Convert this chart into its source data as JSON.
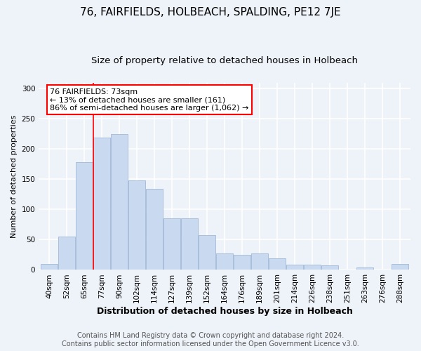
{
  "title": "76, FAIRFIELDS, HOLBEACH, SPALDING, PE12 7JE",
  "subtitle": "Size of property relative to detached houses in Holbeach",
  "xlabel": "Distribution of detached houses by size in Holbeach",
  "ylabel": "Number of detached properties",
  "bar_labels": [
    "40sqm",
    "52sqm",
    "65sqm",
    "77sqm",
    "90sqm",
    "102sqm",
    "114sqm",
    "127sqm",
    "139sqm",
    "152sqm",
    "164sqm",
    "176sqm",
    "189sqm",
    "201sqm",
    "214sqm",
    "226sqm",
    "238sqm",
    "251sqm",
    "263sqm",
    "276sqm",
    "288sqm"
  ],
  "bar_values": [
    10,
    55,
    178,
    219,
    225,
    148,
    134,
    85,
    85,
    57,
    27,
    25,
    27,
    19,
    9,
    9,
    8,
    0,
    4,
    0,
    10
  ],
  "bar_color": "#c9d9f0",
  "bar_edge_color": "#a0b8d8",
  "annotation_line1": "76 FAIRFIELDS: 73sqm",
  "annotation_line2": "← 13% of detached houses are smaller (161)",
  "annotation_line3": "86% of semi-detached houses are larger (1,062) →",
  "annotation_box_color": "white",
  "annotation_box_edge_color": "red",
  "red_line_bar_index": 2.5,
  "ylim": [
    0,
    310
  ],
  "yticks": [
    0,
    50,
    100,
    150,
    200,
    250,
    300
  ],
  "footer_line1": "Contains HM Land Registry data © Crown copyright and database right 2024.",
  "footer_line2": "Contains public sector information licensed under the Open Government Licence v3.0.",
  "bg_color": "#eef2f9",
  "grid_color": "white",
  "title_fontsize": 11,
  "subtitle_fontsize": 9.5,
  "xlabel_fontsize": 9,
  "ylabel_fontsize": 8,
  "tick_fontsize": 7.5,
  "footer_fontsize": 7,
  "annotation_fontsize": 8
}
